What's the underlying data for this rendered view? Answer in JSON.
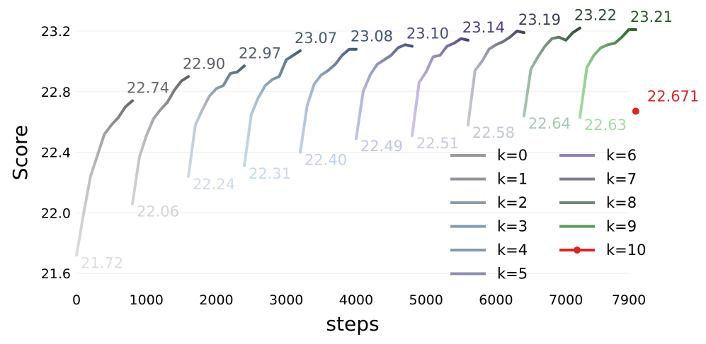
{
  "chart_data": {
    "type": "line",
    "xlabel": "steps",
    "ylabel": "Score",
    "xlim": [
      0,
      7900
    ],
    "ylim": [
      21.55,
      23.32
    ],
    "x_ticks": [
      0,
      1000,
      2000,
      3000,
      4000,
      5000,
      6000,
      7000,
      7900
    ],
    "x_tick_labels": [
      "0",
      "1000",
      "2000",
      "3000",
      "4000",
      "5000",
      "6000",
      "7000",
      "7900"
    ],
    "y_ticks": [
      21.6,
      22.0,
      22.4,
      22.8,
      23.2
    ],
    "y_tick_labels": [
      "21.6",
      "22.0",
      "22.4",
      "22.8",
      "23.2"
    ],
    "grid": true,
    "legend_position": "lower-right",
    "series": [
      {
        "name": "k=0",
        "color": "#9b9b9b",
        "start_color": "#dddddd",
        "end_color": "#666666",
        "start_label": "21.72",
        "end_label": "22.74",
        "x": [
          0,
          100,
          200,
          300,
          400,
          500,
          600,
          700,
          800
        ],
        "y": [
          21.72,
          21.99,
          22.24,
          22.38,
          22.52,
          22.58,
          22.63,
          22.7,
          22.74
        ]
      },
      {
        "name": "k=1",
        "color": "#919599",
        "start_color": "#d2d4d8",
        "end_color": "#5a5d62",
        "start_label": "22.06",
        "end_label": "22.90",
        "x": [
          800,
          900,
          1000,
          1100,
          1200,
          1300,
          1400,
          1500,
          1600
        ],
        "y": [
          22.06,
          22.37,
          22.51,
          22.62,
          22.68,
          22.73,
          22.81,
          22.87,
          22.9
        ]
      },
      {
        "name": "k=2",
        "color": "#8c99a6",
        "start_color": "#cfdae6",
        "end_color": "#52606e",
        "start_label": "22.24",
        "end_label": "22.97",
        "x": [
          1600,
          1700,
          1800,
          1900,
          2000,
          2100,
          2200,
          2300,
          2400
        ],
        "y": [
          22.24,
          22.58,
          22.68,
          22.77,
          22.82,
          22.84,
          22.92,
          22.93,
          22.97
        ]
      },
      {
        "name": "k=3",
        "color": "#7f9ab2",
        "start_color": "#c6dbea",
        "end_color": "#445a72",
        "start_label": "22.31",
        "end_label": "23.07",
        "x": [
          2400,
          2500,
          2600,
          2700,
          2800,
          2900,
          3000,
          3100,
          3200
        ],
        "y": [
          22.31,
          22.65,
          22.76,
          22.84,
          22.88,
          22.9,
          23.01,
          23.04,
          23.07
        ]
      },
      {
        "name": "k=4",
        "color": "#8798b6",
        "start_color": "#bfd1ea",
        "end_color": "#3e5476",
        "start_label": "22.40",
        "end_label": "23.08",
        "x": [
          3200,
          3300,
          3400,
          3500,
          3600,
          3700,
          3800,
          3900,
          4000
        ],
        "y": [
          22.4,
          22.71,
          22.85,
          22.91,
          22.94,
          22.98,
          23.04,
          23.08,
          23.08
        ]
      },
      {
        "name": "k=5",
        "color": "#8b8cad",
        "start_color": "#c0c4e6",
        "end_color": "#464e76",
        "start_label": "22.49",
        "end_label": "23.10",
        "x": [
          4000,
          4100,
          4200,
          4300,
          4400,
          4500,
          4600,
          4700,
          4800
        ],
        "y": [
          22.49,
          22.8,
          22.91,
          22.98,
          23.01,
          23.04,
          23.09,
          23.11,
          23.1
        ]
      },
      {
        "name": "k=6",
        "color": "#8e80b8",
        "start_color": "#d1c5ea",
        "end_color": "#4e3a7c",
        "start_label": "22.51",
        "end_label": "23.14",
        "x": [
          4800,
          4900,
          5000,
          5100,
          5200,
          5300,
          5400,
          5500,
          5600
        ],
        "y": [
          22.51,
          22.86,
          22.93,
          23.03,
          23.04,
          23.1,
          23.12,
          23.15,
          23.14
        ]
      },
      {
        "name": "k=7",
        "color": "#7e7e92",
        "start_color": "#c5c8d6",
        "end_color": "#3e4058",
        "start_label": "22.58",
        "end_label": "23.19",
        "x": [
          5600,
          5700,
          5800,
          5900,
          6000,
          6100,
          6200,
          6300,
          6400
        ],
        "y": [
          22.58,
          22.94,
          23.0,
          23.08,
          23.11,
          23.13,
          23.16,
          23.2,
          23.19
        ]
      },
      {
        "name": "k=8",
        "color": "#6b8676",
        "start_color": "#a7c8b0",
        "end_color": "#2c4b38",
        "start_label": "22.64",
        "end_label": "23.22",
        "x": [
          6400,
          6500,
          6600,
          6700,
          6800,
          6900,
          7000,
          7100,
          7200
        ],
        "y": [
          22.64,
          22.95,
          23.03,
          23.1,
          23.15,
          23.16,
          23.14,
          23.19,
          23.22
        ]
      },
      {
        "name": "k=9",
        "color": "#5a9a5a",
        "start_color": "#a4dda0",
        "end_color": "#205c20",
        "start_label": "22.63",
        "end_label": "23.21",
        "x": [
          7200,
          7300,
          7400,
          7500,
          7600,
          7700,
          7800,
          7900,
          8000
        ],
        "y": [
          22.63,
          22.96,
          23.04,
          23.09,
          23.11,
          23.12,
          23.16,
          23.21,
          23.21
        ]
      },
      {
        "name": "k=10",
        "color": "#d62728",
        "marker": "dot",
        "start_label": "22.671",
        "x": [
          8000
        ],
        "y": [
          22.671
        ]
      }
    ]
  }
}
